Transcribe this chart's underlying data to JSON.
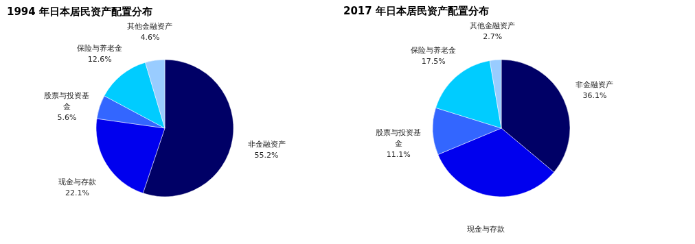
{
  "chart_data": [
    {
      "type": "pie",
      "title": "1994 年日本居民资产配置分布",
      "categories": [
        "非金融资产",
        "现金与存款",
        "股票与投资基金",
        "保险与养老金",
        "其他金融资产"
      ],
      "values": [
        55.2,
        22.1,
        5.6,
        12.6,
        4.6
      ],
      "colors": [
        "#000066",
        "#0000ee",
        "#3366ff",
        "#00ccff",
        "#99ccff"
      ],
      "value_labels": [
        "55.2%",
        "22.1%",
        "5.6%",
        "12.6%",
        "4.6%"
      ]
    },
    {
      "type": "pie",
      "title": "2017 年日本居民资产配置分布",
      "categories": [
        "非金融资产",
        "现金与存款",
        "股票与投资基金",
        "保险与养老金",
        "其他金融资产"
      ],
      "values": [
        36.1,
        32.6,
        11.1,
        17.5,
        2.7
      ],
      "colors": [
        "#000066",
        "#0000ee",
        "#3366ff",
        "#00ccff",
        "#99ccff"
      ],
      "value_labels": [
        "36.1%",
        null,
        "11.1%",
        "17.5%",
        "2.7%"
      ]
    }
  ]
}
